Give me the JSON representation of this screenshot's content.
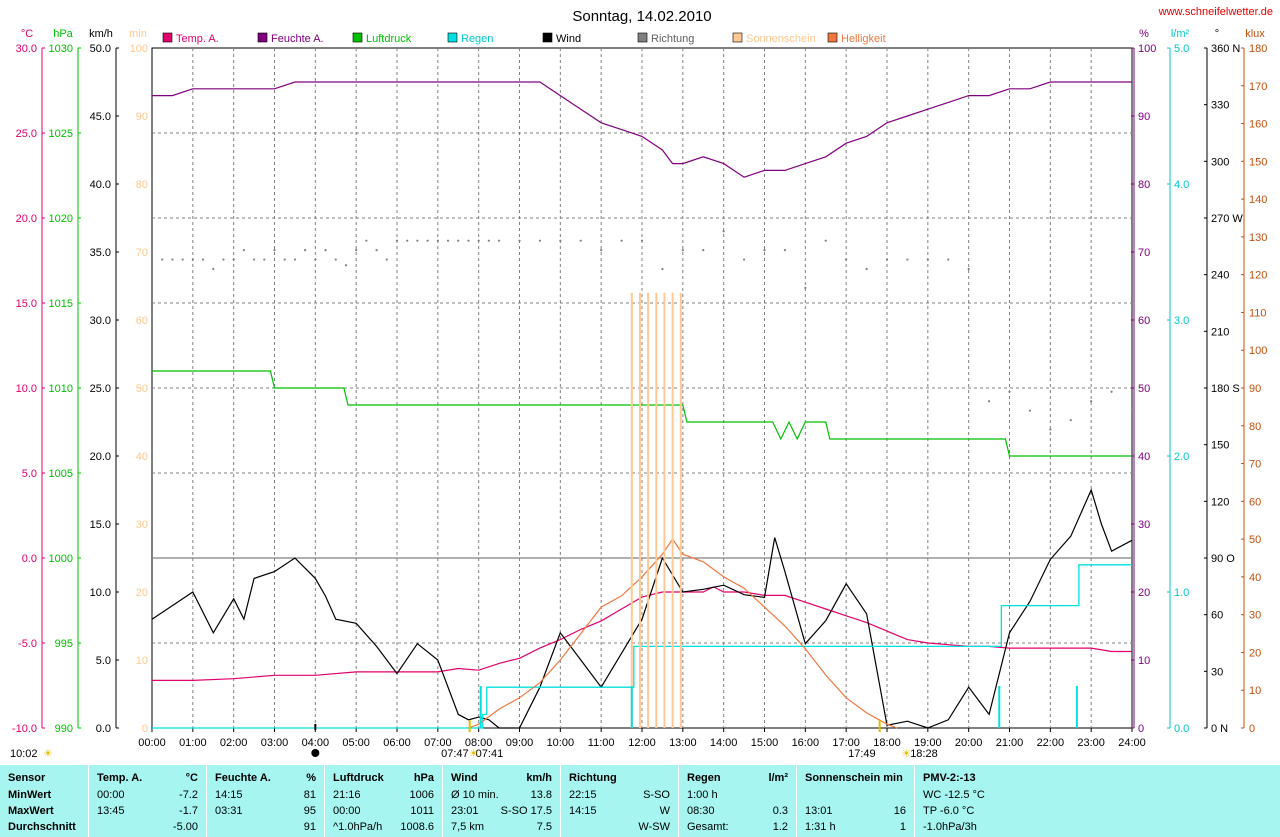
{
  "header": {
    "title": "Sonntag, 14.02.2010",
    "website": "www.schneifelwetter.de"
  },
  "chart_data": {
    "type": "line",
    "title": "Sonntag, 14.02.2010",
    "x_ticks": [
      "00:00",
      "01:00",
      "02:00",
      "03:00",
      "04:00",
      "05:00",
      "06:00",
      "07:00",
      "08:00",
      "09:00",
      "10:00",
      "11:00",
      "12:00",
      "13:00",
      "14:00",
      "15:00",
      "16:00",
      "17:00",
      "18:00",
      "19:00",
      "20:00",
      "21:00",
      "22:00",
      "23:00",
      "24:00"
    ],
    "x_range": [
      0,
      24
    ],
    "grid": true,
    "legend": [
      "Temp. A.",
      "Feuchte A.",
      "Luftdruck",
      "Regen",
      "Wind",
      "Richtung",
      "Sonnenschein",
      "Helligkeit"
    ],
    "legend_colors": [
      "#e0006e",
      "#800080",
      "#00c000",
      "#00e0e0",
      "#000000",
      "#808080",
      "#ffc890",
      "#f07840"
    ],
    "axes": {
      "temp": {
        "unit": "°C",
        "min": -10,
        "max": 30,
        "ticks": [
          "30.0",
          "25.0",
          "20.0",
          "15.0",
          "10.0",
          "5.0",
          "0.0",
          "-5.0",
          "-10.0"
        ],
        "color": "#e0006e"
      },
      "pressure": {
        "unit": "hPa",
        "min": 990,
        "max": 1030,
        "ticks": [
          "1030",
          "1025",
          "1020",
          "1015",
          "1010",
          "1005",
          "1000",
          "995",
          "990"
        ],
        "color": "#00c000"
      },
      "wind": {
        "unit": "km/h",
        "min": 0,
        "max": 50,
        "ticks": [
          "50.0",
          "45.0",
          "40.0",
          "35.0",
          "30.0",
          "25.0",
          "20.0",
          "15.0",
          "10.0",
          "5.0",
          "0.0"
        ],
        "color": "#000000"
      },
      "sun": {
        "unit": "min",
        "min": 0,
        "max": 100,
        "ticks": [
          "100",
          "90",
          "80",
          "70",
          "60",
          "50",
          "40",
          "30",
          "20",
          "10",
          "0"
        ],
        "color": "#ffc890"
      },
      "humidity": {
        "unit": "%",
        "min": 0,
        "max": 100,
        "ticks": [
          "100",
          "90",
          "80",
          "70",
          "60",
          "50",
          "40",
          "30",
          "20",
          "10",
          "0"
        ],
        "color": "#800080"
      },
      "rain": {
        "unit": "l/m²",
        "min": 0,
        "max": 5,
        "ticks": [
          "5.0",
          "4.0",
          "3.0",
          "2.0",
          "1.0",
          "0.0"
        ],
        "color": "#00c8c8"
      },
      "direction": {
        "unit": "°",
        "min": 0,
        "max": 360,
        "ticks": [
          "360 N",
          "330",
          "300",
          "270 W",
          "240",
          "210",
          "180 S",
          "150",
          "120",
          "90 O",
          "60",
          "30",
          "0 N"
        ],
        "color": "#000000"
      },
      "brightness": {
        "unit": "klux",
        "min": 0,
        "max": 180,
        "ticks": [
          "180",
          "170",
          "160",
          "150",
          "140",
          "130",
          "120",
          "110",
          "100",
          "90",
          "80",
          "70",
          "60",
          "50",
          "40",
          "30",
          "20",
          "10",
          "0"
        ],
        "color": "#c05010"
      }
    },
    "series": [
      {
        "name": "Temp. A.",
        "axis": "temp",
        "color": "#e0006e",
        "x": [
          0,
          1,
          2,
          3,
          4,
          5,
          6,
          7,
          7.5,
          8,
          8.5,
          9,
          9.5,
          10,
          10.5,
          11,
          11.5,
          12,
          12.5,
          13,
          13.5,
          13.75,
          14,
          14.5,
          15,
          15.5,
          16,
          16.5,
          17,
          17.5,
          18,
          18.5,
          19,
          19.5,
          20,
          20.5,
          21,
          21.5,
          22,
          22.5,
          23,
          23.5,
          24
        ],
        "y": [
          -7.2,
          -7.2,
          -7.1,
          -6.9,
          -6.9,
          -6.7,
          -6.7,
          -6.7,
          -6.5,
          -6.6,
          -6.2,
          -5.9,
          -5.3,
          -4.8,
          -4.2,
          -3.7,
          -3.0,
          -2.3,
          -2.0,
          -2.0,
          -2.0,
          -1.7,
          -2.0,
          -2.0,
          -2.2,
          -2.2,
          -2.6,
          -3.0,
          -3.4,
          -3.8,
          -4.3,
          -4.8,
          -5.0,
          -5.1,
          -5.2,
          -5.2,
          -5.3,
          -5.3,
          -5.3,
          -5.3,
          -5.3,
          -5.5,
          -5.5
        ]
      },
      {
        "name": "Feuchte A.",
        "axis": "humidity",
        "color": "#800080",
        "x": [
          0,
          0.5,
          1,
          2,
          3,
          3.5,
          4,
          5,
          6,
          7,
          8,
          9,
          9.5,
          10,
          10.5,
          11,
          11.5,
          12,
          12.5,
          12.75,
          13,
          13.5,
          14,
          14.5,
          15,
          15.5,
          16,
          16.5,
          17,
          17.5,
          18,
          18.5,
          19,
          19.5,
          20,
          20.5,
          21,
          21.5,
          22,
          23,
          24
        ],
        "y": [
          93,
          93,
          94,
          94,
          94,
          95,
          95,
          95,
          95,
          95,
          95,
          95,
          95,
          93,
          91,
          89,
          88,
          87,
          85,
          83,
          83,
          84,
          83,
          81,
          82,
          82,
          83,
          84,
          86,
          87,
          89,
          90,
          91,
          92,
          93,
          93,
          94,
          94,
          95,
          95,
          95
        ]
      },
      {
        "name": "Luftdruck",
        "axis": "pressure",
        "color": "#00c000",
        "x": [
          0,
          2.9,
          3,
          4.7,
          4.8,
          13,
          13.1,
          15.2,
          15.4,
          15.6,
          15.8,
          16,
          16.5,
          16.6,
          20.9,
          21,
          22,
          24
        ],
        "y": [
          1011,
          1011,
          1010,
          1010,
          1009,
          1009,
          1008,
          1008,
          1007,
          1008,
          1007,
          1008,
          1008,
          1007,
          1007,
          1006,
          1006,
          1006
        ]
      },
      {
        "name": "Wind",
        "axis": "wind",
        "color": "#000000",
        "x": [
          0,
          0.5,
          1,
          1.5,
          2,
          2.25,
          2.5,
          3,
          3.5,
          4,
          4.25,
          4.5,
          5,
          5.5,
          6,
          6.5,
          7,
          7.5,
          7.75,
          8,
          8.25,
          8.5,
          9,
          9.5,
          10,
          10.5,
          11,
          11.5,
          12,
          12.5,
          13,
          13.5,
          14,
          14.5,
          15,
          15.25,
          15.5,
          16,
          16.5,
          17,
          17.5,
          18,
          18.5,
          19,
          19.5,
          20,
          20.5,
          21,
          21.5,
          22,
          22.5,
          23,
          23.25,
          23.5,
          24
        ],
        "y": [
          8,
          9,
          10,
          7,
          9.5,
          8,
          11,
          11.5,
          12.5,
          11,
          9.7,
          8,
          7.7,
          6,
          4,
          6.2,
          5,
          1,
          0.6,
          0.8,
          0.6,
          0,
          0,
          3,
          7,
          5,
          3,
          5.5,
          8,
          12.5,
          10,
          10.2,
          10.5,
          9.8,
          9.6,
          14,
          11.5,
          6.2,
          7.9,
          10.6,
          8.4,
          0.2,
          0.5,
          0,
          0.6,
          3,
          1,
          7,
          9.3,
          12.4,
          14.1,
          17.5,
          15,
          13,
          13.8
        ]
      },
      {
        "name": "Richtung",
        "axis": "direction",
        "color": "#808080",
        "style": "dots",
        "x": [
          0.25,
          0.5,
          0.75,
          1,
          1.25,
          1.5,
          1.75,
          2,
          2.25,
          2.5,
          2.75,
          3,
          3.25,
          3.5,
          3.75,
          4,
          4.25,
          4.5,
          4.75,
          5,
          5.25,
          5.5,
          5.75,
          6,
          6.25,
          6.5,
          6.75,
          7,
          7.25,
          7.5,
          7.75,
          8,
          8.25,
          8.5,
          9,
          9.5,
          10,
          10.5,
          11,
          11.5,
          12,
          12.5,
          13,
          13.5,
          14,
          14.5,
          15,
          15.5,
          16,
          16.5,
          17,
          17.5,
          18,
          18.5,
          19,
          19.5,
          20,
          20.5,
          21,
          21.5,
          22,
          22.5,
          23,
          23.5,
          24
        ],
        "y": [
          248,
          248,
          248,
          248,
          248,
          243,
          248,
          248,
          253,
          248,
          248,
          253,
          248,
          248,
          253,
          248,
          253,
          248,
          245,
          253,
          258,
          253,
          248,
          258,
          258,
          258,
          258,
          258,
          258,
          258,
          258,
          258,
          258,
          258,
          258,
          258,
          258,
          258,
          253,
          258,
          258,
          243,
          253,
          253,
          263,
          248,
          253,
          253,
          233,
          258,
          248,
          243,
          248,
          248,
          248,
          248,
          243,
          173,
          178,
          168,
          158,
          163,
          173,
          178,
          168
        ]
      },
      {
        "name": "Regen",
        "axis": "rain",
        "color": "#00e0e0",
        "style": "step",
        "x": [
          0,
          7.9,
          8.1,
          8.2,
          11.7,
          11.8,
          20.7,
          20.8,
          22.6,
          22.7,
          24
        ],
        "y": [
          0,
          0,
          0.1,
          0.3,
          0.3,
          0.6,
          0.6,
          0.9,
          0.9,
          1.2,
          1.2
        ]
      },
      {
        "name": "Helligkeit",
        "axis": "brightness",
        "color": "#f07840",
        "x": [
          7.75,
          8,
          8.5,
          9,
          9.5,
          10,
          10.5,
          11,
          11.5,
          12,
          12.5,
          12.75,
          13,
          13.5,
          14,
          14.5,
          15,
          15.5,
          16,
          16.5,
          17,
          17.5,
          18,
          18.25
        ],
        "y": [
          0,
          1,
          5,
          8,
          12,
          18,
          25,
          32,
          35,
          40,
          46,
          50,
          46,
          44,
          40,
          37,
          32,
          27,
          21,
          14,
          8,
          4,
          1,
          0
        ]
      },
      {
        "name": "Sonnenschein",
        "axis": "sun",
        "color": "#ffc890",
        "style": "bars",
        "x": [
          11.75,
          11.95,
          12.15,
          12.35,
          12.55,
          12.75,
          12.95
        ],
        "y": [
          16,
          16,
          16,
          16,
          16,
          16,
          16
        ]
      }
    ],
    "rain_markers_x": [
      8.05,
      11.75,
      20.75,
      22.65
    ],
    "sun_markers": {
      "sunrise": "07:47",
      "sunrise2": "07:41",
      "sunset": "17:49",
      "sunset2": "18:28"
    },
    "bottom_left_time": "10:02"
  },
  "table": {
    "columns": [
      {
        "header": [
          "Sensor",
          ""
        ],
        "rows": [
          [
            "MinWert",
            ""
          ],
          [
            "MaxWert",
            ""
          ],
          [
            "Durchschnitt",
            ""
          ]
        ]
      },
      {
        "header": [
          "Temp. A.",
          "°C"
        ],
        "rows": [
          [
            "00:00",
            "-7.2"
          ],
          [
            "13:45",
            "-1.7"
          ],
          [
            "",
            "-5.00"
          ]
        ]
      },
      {
        "header": [
          "Feuchte A.",
          "%"
        ],
        "rows": [
          [
            "14:15",
            "81"
          ],
          [
            "03:31",
            "95"
          ],
          [
            "",
            "91"
          ]
        ]
      },
      {
        "header": [
          "Luftdruck",
          "hPa"
        ],
        "rows": [
          [
            "21:16",
            "1006"
          ],
          [
            "00:00",
            "1011"
          ],
          [
            "^1.0hPa/h",
            "1008.6"
          ]
        ]
      },
      {
        "header": [
          "Wind",
          "km/h"
        ],
        "rows": [
          [
            "Ø 10 min.",
            "13.8"
          ],
          [
            "23:01",
            "S-SO 17.5"
          ],
          [
            "7,5 km",
            "7.5"
          ]
        ]
      },
      {
        "header": [
          "Richtung",
          ""
        ],
        "rows": [
          [
            "22:15",
            "S-SO"
          ],
          [
            "14:15",
            "W"
          ],
          [
            "",
            "W-SW"
          ]
        ]
      },
      {
        "header": [
          "Regen",
          "l/m²"
        ],
        "rows": [
          [
            "1:00 h",
            ""
          ],
          [
            "08:30",
            "0.3"
          ],
          [
            "Gesamt:",
            "1.2"
          ]
        ]
      },
      {
        "header": [
          "Sonnenschein min",
          ""
        ],
        "rows": [
          [
            "",
            ""
          ],
          [
            "13:01",
            "16"
          ],
          [
            "1:31 h",
            "1"
          ]
        ]
      },
      {
        "header": [
          "PMV-2:-13",
          ""
        ],
        "rows": [
          [
            "WC -12.5 °C",
            ""
          ],
          [
            "TP -6.0 °C",
            ""
          ],
          [
            "-1.0hPa/3h",
            ""
          ]
        ]
      }
    ]
  }
}
